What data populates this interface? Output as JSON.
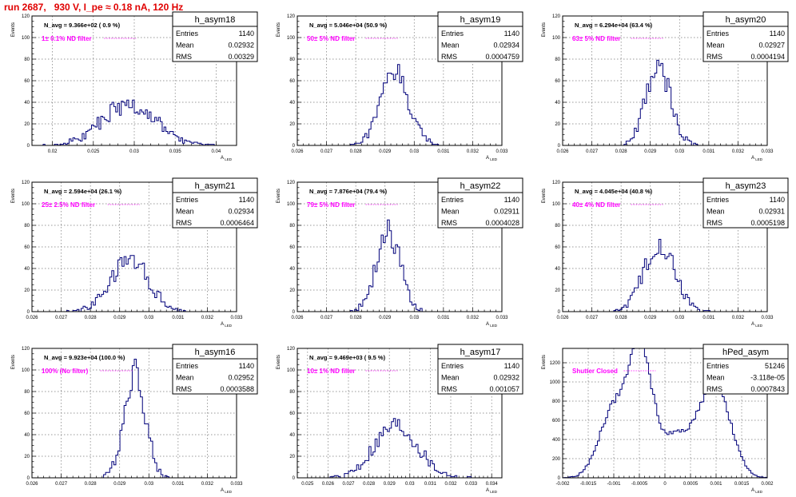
{
  "title": "run 2687,   930 V, I_pe ≈ 0.18 nA, 120 Hz",
  "y_axis_label": "Events",
  "x_axis_label": "A_LED",
  "stat_labels": {
    "entries": "Entries",
    "mean": "Mean",
    "rms": "RMS"
  },
  "colors": {
    "title": "#e00000",
    "histogram": "#00007a",
    "filter_text": "#ff00ff"
  },
  "chart_data": [
    {
      "type": "histogram",
      "name": "h_asym18",
      "navg": "N_avg = 9.366e+02 ( 0.9 %)",
      "filter": "1± 0.1% ND filter",
      "stats": {
        "entries": "1140",
        "mean": "0.02932",
        "rms": "0.00329"
      },
      "xlim": [
        0.0175,
        0.0425
      ],
      "ylim": [
        0,
        120
      ],
      "xticks": [
        0.02,
        0.025,
        0.03,
        0.035,
        0.04
      ],
      "xtick_labels": [
        "0.02",
        "0.025",
        "0.03",
        "0.035",
        "0.04"
      ],
      "yticks": [
        0,
        20,
        40,
        60,
        80,
        100,
        120
      ],
      "ytick_labels": [
        "0",
        "20",
        "40",
        "60",
        "80",
        "100",
        "120"
      ],
      "shape": {
        "mode": "gauss",
        "mu": 0.0293,
        "sigma": 0.00329,
        "peak": 38,
        "bins": 110,
        "xmin": 0.0175,
        "xmax": 0.0425
      }
    },
    {
      "type": "histogram",
      "name": "h_asym19",
      "navg": "N_avg = 5.046e+04 (50.9 %)",
      "filter": "50± 5% ND filter",
      "stats": {
        "entries": "1140",
        "mean": "0.02934",
        "rms": "0.0004759"
      },
      "xlim": [
        0.026,
        0.033
      ],
      "ylim": [
        0,
        120
      ],
      "xticks": [
        0.026,
        0.027,
        0.028,
        0.029,
        0.03,
        0.031,
        0.032,
        0.033
      ],
      "xtick_labels": [
        "0.026",
        "0.027",
        "0.028",
        "0.029",
        "0.03",
        "0.031",
        "0.032",
        "0.033"
      ],
      "yticks": [
        0,
        20,
        40,
        60,
        80,
        100,
        120
      ],
      "ytick_labels": [
        "0",
        "20",
        "40",
        "60",
        "80",
        "100",
        "120"
      ],
      "shape": {
        "mode": "gauss",
        "mu": 0.02934,
        "sigma": 0.000476,
        "peak": 68,
        "bins": 100,
        "xmin": 0.026,
        "xmax": 0.033
      }
    },
    {
      "type": "histogram",
      "name": "h_asym20",
      "navg": "N_avg = 6.294e+04 (63.4 %)",
      "filter": "63± 5% ND filter",
      "stats": {
        "entries": "1140",
        "mean": "0.02927",
        "rms": "0.0004194"
      },
      "xlim": [
        0.026,
        0.033
      ],
      "ylim": [
        0,
        120
      ],
      "xticks": [
        0.026,
        0.027,
        0.028,
        0.029,
        0.03,
        0.031,
        0.032,
        0.033
      ],
      "xtick_labels": [
        "0.026",
        "0.027",
        "0.028",
        "0.029",
        "0.03",
        "0.031",
        "0.032",
        "0.033"
      ],
      "yticks": [
        0,
        20,
        40,
        60,
        80,
        100,
        120
      ],
      "ytick_labels": [
        "0",
        "20",
        "40",
        "60",
        "80",
        "100",
        "120"
      ],
      "shape": {
        "mode": "gauss",
        "mu": 0.02927,
        "sigma": 0.00042,
        "peak": 74,
        "bins": 100,
        "xmin": 0.026,
        "xmax": 0.033
      }
    },
    {
      "type": "histogram",
      "name": "h_asym21",
      "navg": "N_avg = 2.594e+04 (26.1 %)",
      "filter": "25± 2.5% ND filter",
      "stats": {
        "entries": "1140",
        "mean": "0.02934",
        "rms": "0.0006464"
      },
      "xlim": [
        0.026,
        0.033
      ],
      "ylim": [
        0,
        120
      ],
      "xticks": [
        0.026,
        0.027,
        0.028,
        0.029,
        0.03,
        0.031,
        0.032,
        0.033
      ],
      "xtick_labels": [
        "0.026",
        "0.027",
        "0.028",
        "0.029",
        "0.03",
        "0.031",
        "0.032",
        "0.033"
      ],
      "yticks": [
        0,
        20,
        40,
        60,
        80,
        100,
        120
      ],
      "ytick_labels": [
        "0",
        "20",
        "40",
        "60",
        "80",
        "100",
        "120"
      ],
      "shape": {
        "mode": "gauss",
        "mu": 0.02934,
        "sigma": 0.000646,
        "peak": 48,
        "bins": 100,
        "xmin": 0.026,
        "xmax": 0.033
      }
    },
    {
      "type": "histogram",
      "name": "h_asym22",
      "navg": "N_avg = 7.876e+04 (79.4 %)",
      "filter": "79± 5% ND filter",
      "stats": {
        "entries": "1140",
        "mean": "0.02911",
        "rms": "0.0004028"
      },
      "xlim": [
        0.026,
        0.033
      ],
      "ylim": [
        0,
        120
      ],
      "xticks": [
        0.026,
        0.027,
        0.028,
        0.029,
        0.03,
        0.031,
        0.032,
        0.033
      ],
      "xtick_labels": [
        "0.026",
        "0.027",
        "0.028",
        "0.029",
        "0.03",
        "0.031",
        "0.032",
        "0.033"
      ],
      "yticks": [
        0,
        20,
        40,
        60,
        80,
        100,
        120
      ],
      "ytick_labels": [
        "0",
        "20",
        "40",
        "60",
        "80",
        "100",
        "120"
      ],
      "shape": {
        "mode": "gauss",
        "mu": 0.02911,
        "sigma": 0.000403,
        "peak": 74,
        "bins": 100,
        "xmin": 0.026,
        "xmax": 0.033
      }
    },
    {
      "type": "histogram",
      "name": "h_asym23",
      "navg": "N_avg = 4.045e+04 (40.8 %)",
      "filter": "40± 4% ND filter",
      "stats": {
        "entries": "1140",
        "mean": "0.02931",
        "rms": "0.0005198"
      },
      "xlim": [
        0.026,
        0.033
      ],
      "ylim": [
        0,
        120
      ],
      "xticks": [
        0.026,
        0.027,
        0.028,
        0.029,
        0.03,
        0.031,
        0.032,
        0.033
      ],
      "xtick_labels": [
        "0.026",
        "0.027",
        "0.028",
        "0.029",
        "0.03",
        "0.031",
        "0.032",
        "0.033"
      ],
      "yticks": [
        0,
        20,
        40,
        60,
        80,
        100,
        120
      ],
      "ytick_labels": [
        "0",
        "20",
        "40",
        "60",
        "80",
        "100",
        "120"
      ],
      "shape": {
        "mode": "gauss",
        "mu": 0.02931,
        "sigma": 0.00052,
        "peak": 64,
        "bins": 100,
        "xmin": 0.026,
        "xmax": 0.033
      }
    },
    {
      "type": "histogram",
      "name": "h_asym16",
      "navg": "N_avg = 9.923e+04 (100.0 %)",
      "filter": "100% (No filter)",
      "stats": {
        "entries": "1140",
        "mean": "0.02952",
        "rms": "0.0003588"
      },
      "xlim": [
        0.026,
        0.033
      ],
      "ylim": [
        0,
        120
      ],
      "xticks": [
        0.026,
        0.027,
        0.028,
        0.029,
        0.03,
        0.031,
        0.032,
        0.033
      ],
      "xtick_labels": [
        "0.026",
        "0.027",
        "0.028",
        "0.029",
        "0.03",
        "0.031",
        "0.032",
        "0.033"
      ],
      "yticks": [
        0,
        20,
        40,
        60,
        80,
        100,
        120
      ],
      "ytick_labels": [
        "0",
        "20",
        "40",
        "60",
        "80",
        "100",
        "120"
      ],
      "shape": {
        "mode": "gauss",
        "mu": 0.02952,
        "sigma": 0.000359,
        "peak": 100,
        "bins": 100,
        "xmin": 0.026,
        "xmax": 0.033
      }
    },
    {
      "type": "histogram",
      "name": "h_asym17",
      "navg": "N_avg = 9.469e+03 ( 9.5 %)",
      "filter": "10± 1% ND filter",
      "stats": {
        "entries": "1140",
        "mean": "0.02932",
        "rms": "0.001057"
      },
      "xlim": [
        0.0245,
        0.0345
      ],
      "ylim": [
        0,
        120
      ],
      "xticks": [
        0.025,
        0.026,
        0.027,
        0.028,
        0.029,
        0.03,
        0.031,
        0.032,
        0.033,
        0.034
      ],
      "xtick_labels": [
        "0.025",
        "0.026",
        "0.027",
        "0.028",
        "0.029",
        "0.03",
        "0.031",
        "0.032",
        "0.033",
        "0.034"
      ],
      "yticks": [
        0,
        20,
        40,
        60,
        80,
        100,
        120
      ],
      "ytick_labels": [
        "0",
        "20",
        "40",
        "60",
        "80",
        "100",
        "120"
      ],
      "shape": {
        "mode": "gauss",
        "mu": 0.02932,
        "sigma": 0.00106,
        "peak": 48,
        "bins": 100,
        "xmin": 0.0245,
        "xmax": 0.0345
      }
    },
    {
      "type": "histogram",
      "name": "hPed_asym",
      "navg": "",
      "filter": "Shutter Closed",
      "stats": {
        "entries": "51246",
        "mean": "-3.118e-05",
        "rms": "0.0007843"
      },
      "xlim": [
        -0.002,
        0.002
      ],
      "ylim": [
        0,
        1350
      ],
      "xticks": [
        -0.002,
        -0.0015,
        -0.001,
        -0.0005,
        0,
        0.0005,
        0.001,
        0.0015,
        0.002
      ],
      "xtick_labels": [
        "-0.002",
        "-0.0015",
        "-0.001",
        "-0.0005",
        "0",
        "0.0005",
        "0.001",
        "0.0015",
        "0.002"
      ],
      "yticks": [
        0,
        200,
        400,
        600,
        800,
        1000,
        1200
      ],
      "ytick_labels": [
        "0",
        "200",
        "400",
        "600",
        "800",
        "1000",
        "1200"
      ],
      "shape": {
        "mode": "pedestal",
        "bins": 100,
        "xmin": -0.002,
        "xmax": 0.002
      }
    }
  ]
}
